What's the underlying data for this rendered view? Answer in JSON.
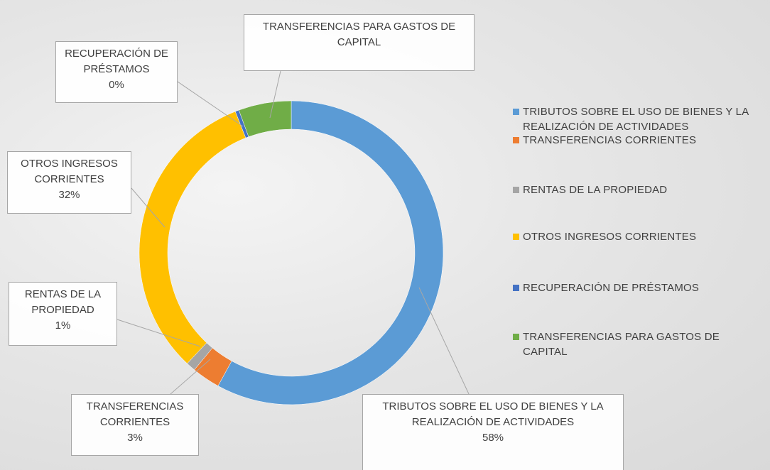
{
  "chart_data": {
    "type": "donut",
    "categories": [
      "TRIBUTOS SOBRE EL USO DE BIENES Y LA REALIZACIÓN DE ACTIVIDADES",
      "TRANSFERENCIAS CORRIENTES",
      "RENTAS DE LA PROPIEDAD",
      "OTROS INGRESOS CORRIENTES",
      "RECUPERACIÓN DE PRÉSTAMOS",
      "TRANSFERENCIAS PARA GASTOS DE CAPITAL"
    ],
    "values": [
      58,
      3,
      1,
      32,
      0.4,
      5.6
    ],
    "value_labels": [
      "58%",
      "3%",
      "1%",
      "32%",
      "0%",
      null
    ],
    "colors": [
      "#5b9bd5",
      "#ed7d31",
      "#a5a5a5",
      "#ffc000",
      "#4472c4",
      "#70ad47"
    ],
    "legend": "right"
  }
}
